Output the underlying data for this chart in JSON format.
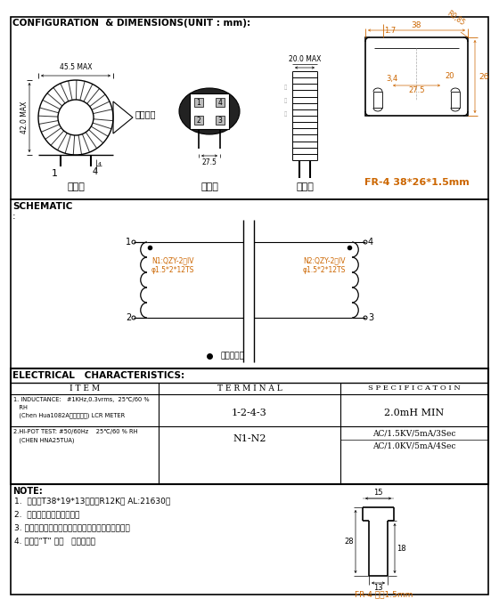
{
  "title_section1": "CONFIGURATION  & DIMENSIONS(UNIT : mm):",
  "title_section2": "SCHEMATIC",
  "title_section3": "ELECTRICAL   CHARACTERISTICS:",
  "bg_color": "#ffffff",
  "border_color": "#000000",
  "text_color": "#000000",
  "dim_color": "#cc6600",
  "blue_color": "#0000cc",
  "front_view_label": "正视图",
  "bottom_view_label": "底视图",
  "side_view_label": "则视图",
  "dot_fix_label": "点胶固定",
  "fr4_label1": "FR-4 38*26*1.5mm",
  "fr4_label2": "FR-4 厅度1.5mm",
  "schematic_colon": ":",
  "note_label": "NOTE:",
  "note_lines": [
    "1.  产品为T38*19*13磁环（R12K材 AL:21630）",
    "2.  绕制整齐均匀，不可伤线",
    "3. 引出线及磁环与底板、隔板与磁环之间点胶固定。",
    "4. 隔板为“T” 型。   （如右图）"
  ],
  "table_col1_header": "I T E M",
  "table_col2_header": "T E R M I N A L",
  "table_col3_header": "S P E C I F I C A T O I N",
  "row1_item_line1": "1. INDUCTANCE:   #1KHz,0.3vrms,  25℃/60 %",
  "row1_item_line2": "   RH",
  "row1_item_line3": "   (Chen Hua1082A模拟测试仪) LCR METER",
  "row1_terminal": "1-2-4-3",
  "row1_spec": "2.0mH MIN",
  "row2_item_line1": "2.HI-POT TEST: #50/60Hz    25℃/60 % RH",
  "row2_item_line2": "   (CHEN HNA25TUA)",
  "row2_terminal": "N1-N2",
  "row2_spec1": "AC/1.5KV/5mA/3Sec",
  "row2_spec2": "AC/1.0KV/5mA/4Sec",
  "n1_label_line1": "N1:QZY-2级IV",
  "n1_label_line2": "φ1.5*2*12TS",
  "n2_label_line1": "N2:QZY-2级IV",
  "n2_label_line2": "φ1.5*2*12TS",
  "dot_label": "表示同名端",
  "width_front": "45.5 MAX",
  "height_front": "42.0 MAX",
  "width_side": "20.0 MAX",
  "pcb_w_label": "38",
  "pcb_h_label": "26",
  "pcb_r_label": "R0,85",
  "pcb_t_label": "1.7",
  "pcb_inner_w_label": "27.5",
  "pcb_inner_h_label": "20",
  "pcb_pin_label": "3,4",
  "dim_bottom": "27.5",
  "note_t_w": "15",
  "note_t_h": "28",
  "note_t_inner": "13",
  "note_t_side": "18"
}
